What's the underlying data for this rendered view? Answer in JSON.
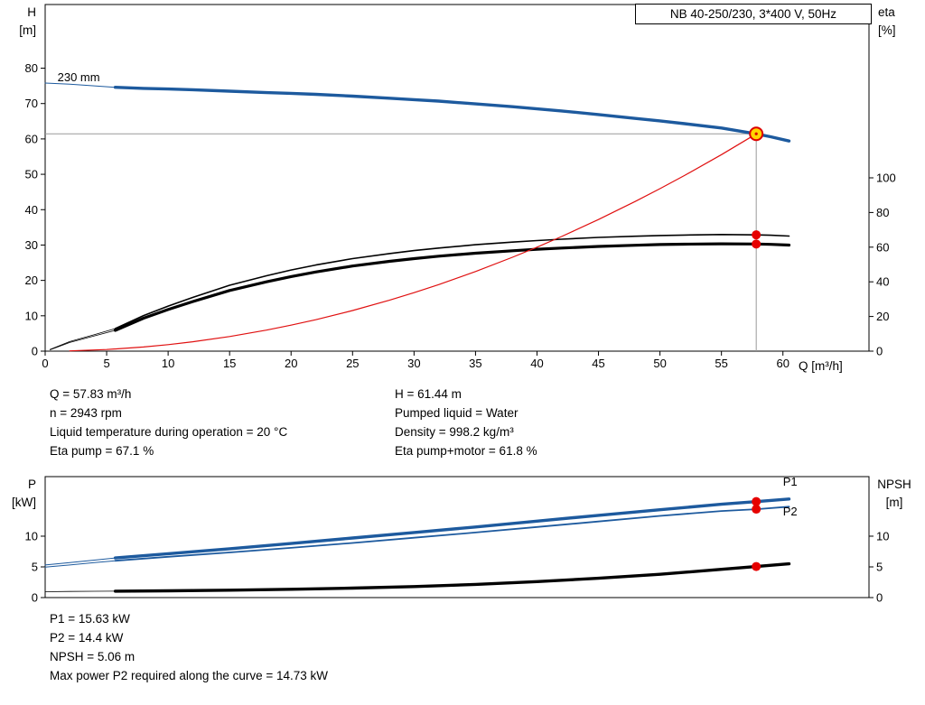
{
  "title_box": "NB 40-250/230, 3*400 V, 50Hz",
  "axes_labels": {
    "top_left_1": "H",
    "top_left_2": "[m]",
    "top_right_1": "eta",
    "top_right_2": "[%]",
    "x_label": "Q [m³/h]",
    "bottom_left_1": "P",
    "bottom_left_2": "[kW]",
    "bottom_right_1": "NPSH",
    "bottom_right_2": "[m]"
  },
  "info_top": {
    "left": [
      "Q = 57.83 m³/h",
      "n = 2943 rpm",
      "Liquid temperature during operation = 20 °C",
      "Eta pump = 67.1 %"
    ],
    "right": [
      "H = 61.44 m",
      "Pumped liquid = Water",
      "Density = 998.2 kg/m³",
      "Eta pump+motor = 61.8 %"
    ]
  },
  "info_bottom": [
    "P1 = 15.63 kW",
    "P2 = 14.4 kW",
    "NPSH = 5.06 m",
    "Max power P2 required along the curve = 14.73 kW"
  ],
  "colors": {
    "curve_blue": "#1d5a9e",
    "curve_black": "#000000",
    "curve_red": "#e01010",
    "duty_fill": "#ffd400",
    "duty_stroke": "#dd0000",
    "dot": "#e60000",
    "ref": "#999999",
    "label_blue": "#1d5a9e"
  },
  "chart_data": [
    {
      "name": "qh-chart",
      "type": "line",
      "title": "NB 40-250/230, 3*400 V, 50Hz",
      "xlabel": "Q [m³/h]",
      "ylabel_left": "H [m]",
      "ylabel_right": "eta [%]",
      "xlim": [
        0,
        67
      ],
      "x_ticks": [
        0,
        5,
        10,
        15,
        20,
        25,
        30,
        35,
        40,
        45,
        50,
        55,
        60
      ],
      "ylim_left": [
        0,
        98
      ],
      "y_ticks_left": [
        0,
        10,
        20,
        30,
        40,
        50,
        60,
        70,
        80
      ],
      "ylim_right": [
        0,
        200
      ],
      "y_ticks_right": [
        0,
        20,
        40,
        60,
        80,
        100
      ],
      "ref": {
        "x": 57.83,
        "y": 61.44
      },
      "series": [
        {
          "name": "qh-curve-thin-extension",
          "axis": "left",
          "color": "#1d5a9e",
          "width": 1,
          "points": [
            [
              0,
              75.8
            ],
            [
              2,
              75.5
            ],
            [
              4,
              75.0
            ],
            [
              5.7,
              74.6
            ]
          ]
        },
        {
          "name": "qh-curve-230mm",
          "axis": "left",
          "color": "#1d5a9e",
          "width": 3.4,
          "points": [
            [
              5.7,
              74.6
            ],
            [
              8,
              74.3
            ],
            [
              10,
              74.1
            ],
            [
              12,
              73.9
            ],
            [
              15,
              73.5
            ],
            [
              18,
              73.1
            ],
            [
              20,
              72.9
            ],
            [
              22,
              72.6
            ],
            [
              25,
              72.1
            ],
            [
              28,
              71.5
            ],
            [
              30,
              71.1
            ],
            [
              32,
              70.7
            ],
            [
              35,
              69.9
            ],
            [
              38,
              69.1
            ],
            [
              40,
              68.5
            ],
            [
              42,
              67.9
            ],
            [
              45,
              66.9
            ],
            [
              48,
              65.8
            ],
            [
              50,
              65.1
            ],
            [
              52,
              64.3
            ],
            [
              55,
              63.1
            ],
            [
              57.83,
              61.44
            ],
            [
              59,
              60.6
            ],
            [
              60.5,
              59.4
            ]
          ]
        },
        {
          "name": "eta-pump-thin-extension",
          "axis": "right",
          "color": "#000000",
          "width": 0.8,
          "points": [
            [
              0.4,
              1
            ],
            [
              2,
              5.5
            ],
            [
              4,
              9.5
            ],
            [
              5.7,
              13
            ]
          ]
        },
        {
          "name": "eta-pump-curve",
          "axis": "right",
          "color": "#000000",
          "width": 1.6,
          "points": [
            [
              5.7,
              13
            ],
            [
              8,
              20.5
            ],
            [
              10,
              26
            ],
            [
              12,
              31
            ],
            [
              15,
              38
            ],
            [
              18,
              43.5
            ],
            [
              20,
              46.8
            ],
            [
              22,
              49.7
            ],
            [
              25,
              53.4
            ],
            [
              28,
              56.3
            ],
            [
              30,
              58
            ],
            [
              32,
              59.5
            ],
            [
              35,
              61.4
            ],
            [
              38,
              62.9
            ],
            [
              40,
              63.8
            ],
            [
              42,
              64.6
            ],
            [
              45,
              65.6
            ],
            [
              48,
              66.3
            ],
            [
              50,
              66.7
            ],
            [
              52,
              67.0
            ],
            [
              55,
              67.3
            ],
            [
              57.83,
              67.1
            ],
            [
              59,
              66.9
            ],
            [
              60.5,
              66.4
            ]
          ]
        },
        {
          "name": "eta-pump-motor-thin-extension",
          "axis": "right",
          "color": "#000000",
          "width": 0.8,
          "points": [
            [
              0.4,
              0.8
            ],
            [
              2,
              5
            ],
            [
              4,
              8.8
            ],
            [
              5.7,
              12
            ]
          ]
        },
        {
          "name": "eta-pump-motor-curve",
          "axis": "right",
          "color": "#000000",
          "width": 3.2,
          "points": [
            [
              5.7,
              12
            ],
            [
              8,
              19
            ],
            [
              10,
              24
            ],
            [
              12,
              28.6
            ],
            [
              15,
              35
            ],
            [
              18,
              40
            ],
            [
              20,
              43
            ],
            [
              22,
              45.7
            ],
            [
              25,
              49.1
            ],
            [
              28,
              51.8
            ],
            [
              30,
              53.4
            ],
            [
              32,
              54.8
            ],
            [
              35,
              56.5
            ],
            [
              38,
              57.9
            ],
            [
              40,
              58.8
            ],
            [
              42,
              59.5
            ],
            [
              45,
              60.4
            ],
            [
              48,
              61.1
            ],
            [
              50,
              61.5
            ],
            [
              52,
              61.7
            ],
            [
              55,
              61.95
            ],
            [
              57.83,
              61.8
            ],
            [
              59,
              61.6
            ],
            [
              60.5,
              61.2
            ]
          ]
        },
        {
          "name": "system-curve",
          "axis": "left",
          "color": "#e01010",
          "width": 1.2,
          "points": [
            [
              2,
              0.07
            ],
            [
              5,
              0.46
            ],
            [
              8,
              1.18
            ],
            [
              10,
              1.84
            ],
            [
              12,
              2.65
            ],
            [
              15,
              4.13
            ],
            [
              18,
              5.95
            ],
            [
              20,
              7.35
            ],
            [
              22,
              8.89
            ],
            [
              25,
              11.48
            ],
            [
              28,
              14.4
            ],
            [
              30,
              16.53
            ],
            [
              32,
              18.81
            ],
            [
              35,
              22.5
            ],
            [
              38,
              26.53
            ],
            [
              40,
              29.39
            ],
            [
              42,
              32.4
            ],
            [
              45,
              37.2
            ],
            [
              48,
              42.33
            ],
            [
              50,
              45.93
            ],
            [
              52,
              49.67
            ],
            [
              55,
              55.57
            ],
            [
              57.83,
              61.44
            ]
          ]
        }
      ],
      "markers": [
        {
          "type": "dot",
          "axis": "right",
          "x": 57.83,
          "y": 67.1,
          "name": "eta-pump-duty-dot"
        },
        {
          "type": "dot",
          "axis": "right",
          "x": 57.83,
          "y": 61.8,
          "name": "eta-pump-motor-duty-dot"
        },
        {
          "type": "duty",
          "axis": "left",
          "x": 57.83,
          "y": 61.44,
          "name": "duty-point-marker"
        }
      ],
      "annotations": [
        {
          "text": "230 mm",
          "x": 1.0,
          "y": 76.3,
          "axis": "left",
          "color": "#000000",
          "name": "impeller-diameter-label"
        }
      ]
    },
    {
      "name": "power-npsh-chart",
      "type": "line",
      "title": "",
      "xlabel": "",
      "ylabel_left": "P [kW]",
      "ylabel_right": "NPSH [m]",
      "xlim": [
        0,
        67
      ],
      "x_ticks": [],
      "ylim_left": [
        0,
        19.7
      ],
      "y_ticks_left": [
        0,
        5,
        10
      ],
      "ylim_right": [
        0,
        19.7
      ],
      "y_ticks_right": [
        0,
        5,
        10
      ],
      "series": [
        {
          "name": "p1-curve-thin-extension",
          "axis": "left",
          "color": "#1d5a9e",
          "width": 1,
          "points": [
            [
              0,
              5.3
            ],
            [
              2,
              5.7
            ],
            [
              4,
              6.1
            ],
            [
              5.7,
              6.45
            ]
          ]
        },
        {
          "name": "p1-curve",
          "axis": "left",
          "color": "#1d5a9e",
          "width": 3.4,
          "points": [
            [
              5.7,
              6.45
            ],
            [
              10,
              7.15
            ],
            [
              15,
              7.95
            ],
            [
              20,
              8.8
            ],
            [
              25,
              9.7
            ],
            [
              30,
              10.6
            ],
            [
              35,
              11.5
            ],
            [
              40,
              12.45
            ],
            [
              45,
              13.4
            ],
            [
              50,
              14.3
            ],
            [
              55,
              15.2
            ],
            [
              57.83,
              15.63
            ],
            [
              60.5,
              16.05
            ]
          ]
        },
        {
          "name": "p2-curve-thin-extension",
          "axis": "left",
          "color": "#1d5a9e",
          "width": 1,
          "points": [
            [
              0,
              4.95
            ],
            [
              2,
              5.3
            ],
            [
              4,
              5.7
            ],
            [
              5.7,
              6.0
            ]
          ]
        },
        {
          "name": "p2-curve",
          "axis": "left",
          "color": "#1d5a9e",
          "width": 1.8,
          "points": [
            [
              5.7,
              6.0
            ],
            [
              10,
              6.65
            ],
            [
              15,
              7.35
            ],
            [
              20,
              8.1
            ],
            [
              25,
              8.9
            ],
            [
              30,
              9.75
            ],
            [
              35,
              10.6
            ],
            [
              40,
              11.5
            ],
            [
              45,
              12.4
            ],
            [
              50,
              13.3
            ],
            [
              55,
              14.1
            ],
            [
              57.83,
              14.4
            ],
            [
              60.5,
              14.8
            ]
          ]
        },
        {
          "name": "npsh-curve-thin-extension",
          "axis": "left",
          "color": "#000000",
          "width": 0.8,
          "points": [
            [
              0,
              0.95
            ],
            [
              2,
              1.0
            ],
            [
              4,
              1.03
            ],
            [
              5.7,
              1.05
            ]
          ]
        },
        {
          "name": "npsh-curve",
          "axis": "left",
          "color": "#000000",
          "width": 3.4,
          "points": [
            [
              5.7,
              1.05
            ],
            [
              10,
              1.1
            ],
            [
              15,
              1.2
            ],
            [
              20,
              1.35
            ],
            [
              25,
              1.55
            ],
            [
              30,
              1.8
            ],
            [
              35,
              2.15
            ],
            [
              40,
              2.6
            ],
            [
              45,
              3.15
            ],
            [
              50,
              3.8
            ],
            [
              55,
              4.6
            ],
            [
              57.83,
              5.06
            ],
            [
              60.5,
              5.5
            ]
          ]
        }
      ],
      "markers": [
        {
          "type": "dot",
          "axis": "left",
          "x": 57.83,
          "y": 15.63,
          "name": "p1-duty-dot"
        },
        {
          "type": "dot",
          "axis": "left",
          "x": 57.83,
          "y": 14.4,
          "name": "p2-duty-dot"
        },
        {
          "type": "dot",
          "axis": "left",
          "x": 57.83,
          "y": 5.06,
          "name": "npsh-duty-dot"
        }
      ],
      "annotations": [
        {
          "text": "P1",
          "x": 60.0,
          "y": 18.2,
          "axis": "left",
          "color": "#1d5a9e",
          "name": "p1-curve-label"
        },
        {
          "text": "P2",
          "x": 60.0,
          "y": 13.4,
          "axis": "left",
          "color": "#1d5a9e",
          "name": "p2-curve-label"
        }
      ]
    }
  ]
}
